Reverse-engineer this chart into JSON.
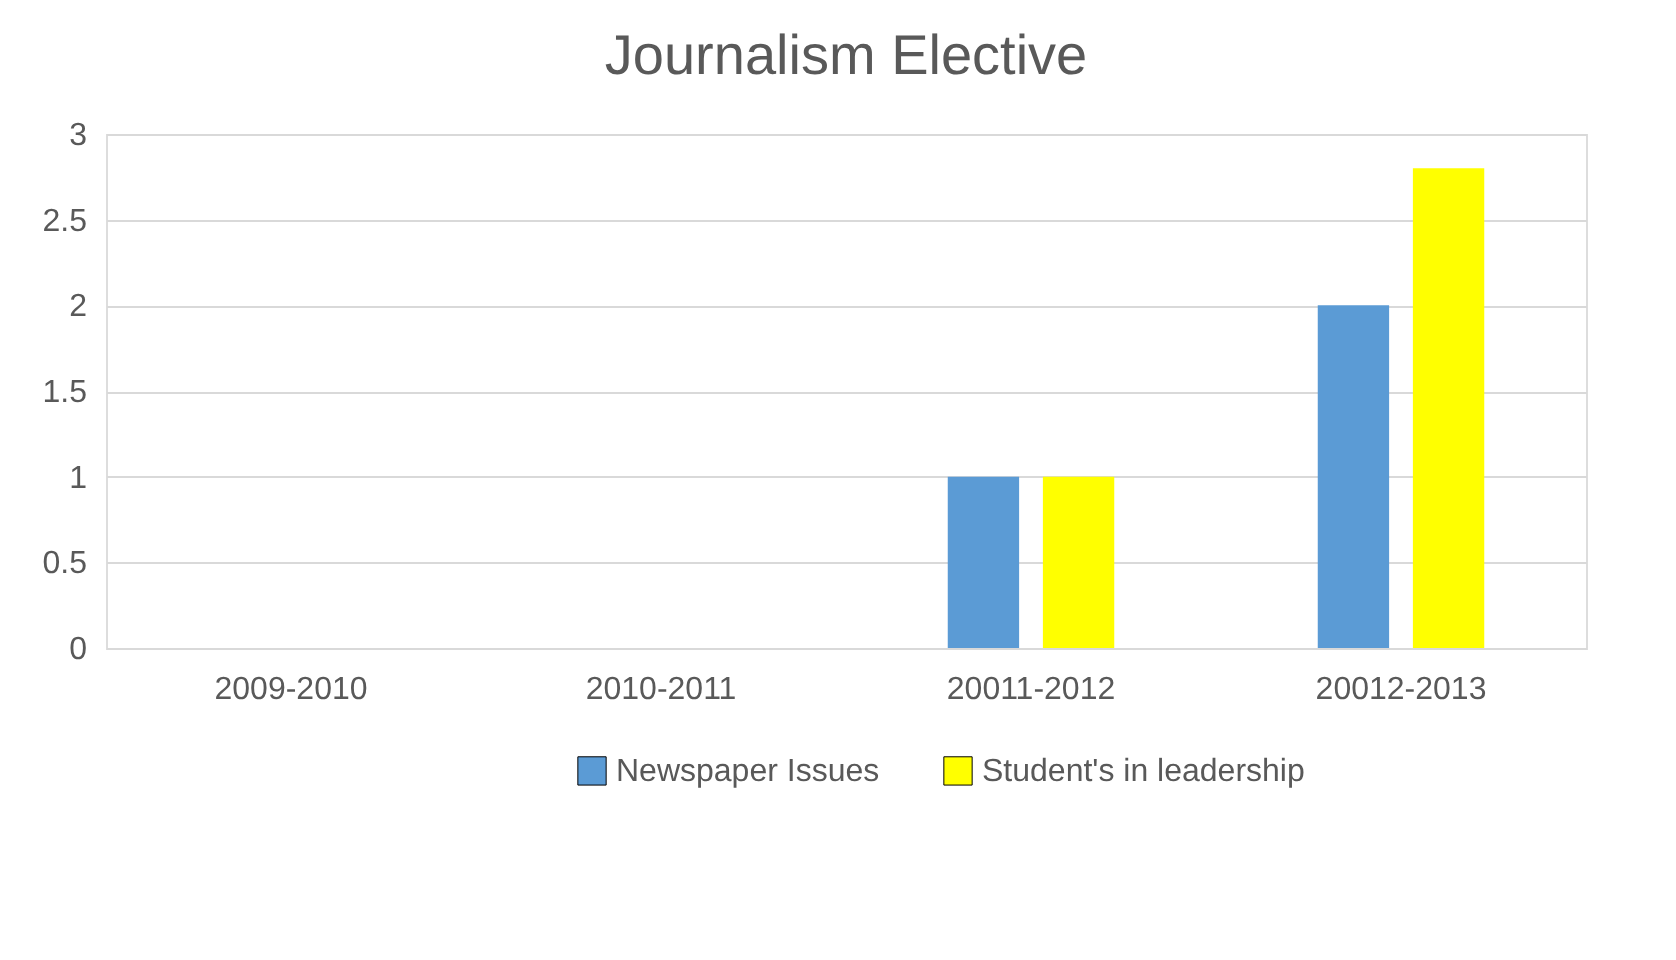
{
  "chart_data": {
    "type": "bar",
    "title": "Journalism Elective",
    "categories": [
      "2009-2010",
      "2010-2011",
      "20011-2012",
      "20012-2013"
    ],
    "series": [
      {
        "name": "Newspaper Issues",
        "color": "#5b9bd5",
        "values": [
          0,
          0,
          1,
          2
        ]
      },
      {
        "name": "Student's in leadership",
        "color": "#ffff00",
        "values": [
          0,
          0,
          1,
          2.8
        ]
      }
    ],
    "ylim": [
      0,
      3
    ],
    "yticks": [
      0,
      0.5,
      1,
      1.5,
      2,
      2.5,
      3
    ],
    "grid": "y",
    "legend": "bottom"
  }
}
